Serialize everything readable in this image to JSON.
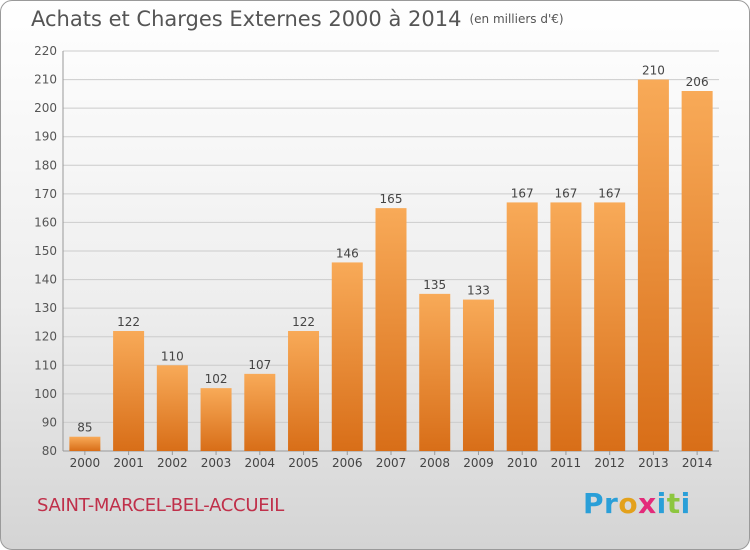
{
  "title": "Achats et Charges Externes 2000 à 2014",
  "subtitle": "(en milliers d'€)",
  "commune": "SAINT-MARCEL-BEL-ACCUEIL",
  "logo": {
    "text": "Proxiti",
    "letters": [
      "P",
      "r",
      "o",
      "x",
      "i",
      "t",
      "i"
    ],
    "colors": [
      "#2a9fd8",
      "#2a9fd8",
      "#e3a11b",
      "#e32a7a",
      "#2a9fd8",
      "#8dc63f",
      "#2a9fd8"
    ]
  },
  "colors": {
    "bar_top": "#f8aa58",
    "bar_bottom": "#d86e18",
    "grid": "#cccccc",
    "commune": "#c0304a"
  },
  "chart_data": {
    "type": "bar",
    "categories": [
      "2000",
      "2001",
      "2002",
      "2003",
      "2004",
      "2005",
      "2006",
      "2007",
      "2008",
      "2009",
      "2010",
      "2011",
      "2012",
      "2013",
      "2014"
    ],
    "values": [
      85,
      122,
      110,
      102,
      107,
      122,
      146,
      165,
      135,
      133,
      167,
      167,
      167,
      210,
      206
    ],
    "ylim": [
      80,
      220
    ],
    "yticks": [
      80,
      90,
      100,
      110,
      120,
      130,
      140,
      150,
      160,
      170,
      180,
      190,
      200,
      210,
      220
    ],
    "grid": true,
    "data_labels": true
  }
}
